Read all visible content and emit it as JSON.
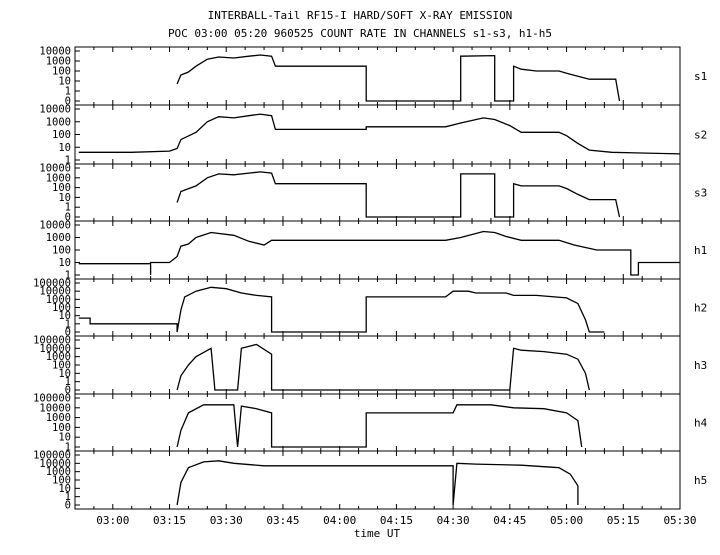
{
  "title_line1": "INTERBALL-Tail RF15-I HARD/SOFT X-RAY EMISSION",
  "title_line2": "POC 03:00 05:20 960525  COUNT RATE IN CHANNELS s1-s3, h1-h5",
  "chart_data": {
    "type": "line",
    "xlabel": "time UT",
    "x_unit": "UT (hh:mm)",
    "xlim": [
      "02:50",
      "05:30"
    ],
    "x_ticks": [
      "03:00",
      "03:15",
      "03:30",
      "03:45",
      "04:00",
      "04:15",
      "04:30",
      "04:45",
      "05:00",
      "05:15",
      "05:30"
    ],
    "y_scale": "log",
    "series": [
      {
        "name": "s1",
        "ylim": [
          0.1,
          10000
        ],
        "y_ticks": [
          "10000",
          "1000",
          "100",
          "10",
          "1",
          "0"
        ],
        "points": [
          [
            "03:17",
            5
          ],
          [
            "03:18",
            40
          ],
          [
            "03:20",
            80
          ],
          [
            "03:22",
            300
          ],
          [
            "03:25",
            1500
          ],
          [
            "03:28",
            2500
          ],
          [
            "03:32",
            2000
          ],
          [
            "03:36",
            3000
          ],
          [
            "03:39",
            4000
          ],
          [
            "03:42",
            3000
          ],
          [
            "03:43",
            300
          ],
          [
            "04:07",
            300
          ],
          [
            "04:07",
            0.1
          ],
          [
            "04:32",
            0.1
          ],
          [
            "04:32",
            3000
          ],
          [
            "04:41",
            3500
          ],
          [
            "04:41",
            0.1
          ],
          [
            "04:46",
            0.1
          ],
          [
            "04:46",
            300
          ],
          [
            "04:48",
            150
          ],
          [
            "04:52",
            100
          ],
          [
            "04:58",
            100
          ],
          [
            "05:00",
            60
          ],
          [
            "05:03",
            30
          ],
          [
            "05:06",
            15
          ],
          [
            "05:13",
            15
          ],
          [
            "05:14",
            0.1
          ]
        ]
      },
      {
        "name": "s2",
        "ylim": [
          1,
          10000
        ],
        "y_ticks": [
          "10000",
          "1000",
          "100",
          "10",
          "1"
        ],
        "points": [
          [
            "02:51",
            4
          ],
          [
            "03:05",
            4
          ],
          [
            "03:15",
            5
          ],
          [
            "03:17",
            8
          ],
          [
            "03:18",
            40
          ],
          [
            "03:22",
            150
          ],
          [
            "03:25",
            1000
          ],
          [
            "03:28",
            2500
          ],
          [
            "03:32",
            2000
          ],
          [
            "03:36",
            3000
          ],
          [
            "03:39",
            4000
          ],
          [
            "03:42",
            3000
          ],
          [
            "03:43",
            250
          ],
          [
            "04:07",
            250
          ],
          [
            "04:07",
            400
          ],
          [
            "04:28",
            400
          ],
          [
            "04:32",
            800
          ],
          [
            "04:38",
            2000
          ],
          [
            "04:41",
            1500
          ],
          [
            "04:45",
            500
          ],
          [
            "04:48",
            150
          ],
          [
            "04:54",
            150
          ],
          [
            "04:58",
            150
          ],
          [
            "05:00",
            80
          ],
          [
            "05:03",
            20
          ],
          [
            "05:06",
            6
          ],
          [
            "05:12",
            4
          ],
          [
            "05:30",
            3
          ]
        ]
      },
      {
        "name": "s3",
        "ylim": [
          0.1,
          10000
        ],
        "y_ticks": [
          "10000",
          "1000",
          "100",
          "10",
          "1",
          "0"
        ],
        "points": [
          [
            "03:17",
            3
          ],
          [
            "03:18",
            40
          ],
          [
            "03:22",
            150
          ],
          [
            "03:25",
            1000
          ],
          [
            "03:28",
            2500
          ],
          [
            "03:32",
            2000
          ],
          [
            "03:36",
            3000
          ],
          [
            "03:39",
            4000
          ],
          [
            "03:42",
            3000
          ],
          [
            "03:43",
            250
          ],
          [
            "04:07",
            250
          ],
          [
            "04:07",
            0.1
          ],
          [
            "04:32",
            0.1
          ],
          [
            "04:32",
            2500
          ],
          [
            "04:41",
            2500
          ],
          [
            "04:41",
            0.1
          ],
          [
            "04:46",
            0.1
          ],
          [
            "04:46",
            250
          ],
          [
            "04:48",
            150
          ],
          [
            "04:54",
            150
          ],
          [
            "04:58",
            150
          ],
          [
            "05:00",
            80
          ],
          [
            "05:03",
            20
          ],
          [
            "05:06",
            6
          ],
          [
            "05:13",
            6
          ],
          [
            "05:14",
            0.1
          ]
        ]
      },
      {
        "name": "h1",
        "ylim": [
          1,
          10000
        ],
        "y_ticks": [
          "10000",
          "1000",
          "100",
          "10",
          "1"
        ],
        "points": [
          [
            "02:51",
            8
          ],
          [
            "03:10",
            8
          ],
          [
            "03:10",
            1
          ],
          [
            "03:10",
            10
          ],
          [
            "03:15",
            10
          ],
          [
            "03:17",
            30
          ],
          [
            "03:18",
            200
          ],
          [
            "03:20",
            300
          ],
          [
            "03:22",
            1000
          ],
          [
            "03:26",
            2500
          ],
          [
            "03:32",
            1500
          ],
          [
            "03:36",
            500
          ],
          [
            "03:40",
            250
          ],
          [
            "03:42",
            600
          ],
          [
            "04:28",
            600
          ],
          [
            "04:32",
            1000
          ],
          [
            "04:38",
            3000
          ],
          [
            "04:41",
            2500
          ],
          [
            "04:44",
            1200
          ],
          [
            "04:48",
            600
          ],
          [
            "04:58",
            600
          ],
          [
            "05:02",
            250
          ],
          [
            "05:08",
            100
          ],
          [
            "05:13",
            100
          ],
          [
            "05:17",
            100
          ],
          [
            "05:17",
            1
          ],
          [
            "05:19",
            1
          ],
          [
            "05:19",
            10
          ],
          [
            "05:30",
            10
          ]
        ]
      },
      {
        "name": "h2",
        "ylim": [
          0.1,
          100000
        ],
        "y_ticks": [
          "100000",
          "10000",
          "1000",
          "100",
          "10",
          "1",
          "0"
        ],
        "points": [
          [
            "02:51",
            5
          ],
          [
            "02:54",
            5
          ],
          [
            "02:54",
            1
          ],
          [
            "03:17",
            1
          ],
          [
            "03:17",
            0.1
          ],
          [
            "03:18",
            50
          ],
          [
            "03:19",
            2000
          ],
          [
            "03:22",
            10000
          ],
          [
            "03:26",
            30000
          ],
          [
            "03:30",
            20000
          ],
          [
            "03:34",
            6000
          ],
          [
            "03:38",
            3000
          ],
          [
            "03:42",
            2000
          ],
          [
            "03:42",
            0.1
          ],
          [
            "04:07",
            0.1
          ],
          [
            "04:07",
            2000
          ],
          [
            "04:28",
            2000
          ],
          [
            "04:30",
            10000
          ],
          [
            "04:34",
            10000
          ],
          [
            "04:36",
            6000
          ],
          [
            "04:44",
            6000
          ],
          [
            "04:46",
            3000
          ],
          [
            "04:52",
            3000
          ],
          [
            "05:00",
            1500
          ],
          [
            "05:03",
            300
          ],
          [
            "05:05",
            3
          ],
          [
            "05:06",
            0.1
          ],
          [
            "05:10",
            0.1
          ]
        ]
      },
      {
        "name": "h3",
        "ylim": [
          0.1,
          100000
        ],
        "y_ticks": [
          "100000",
          "10000",
          "1000",
          "100",
          "10",
          "1",
          "0"
        ],
        "points": [
          [
            "03:17",
            0.1
          ],
          [
            "03:18",
            5
          ],
          [
            "03:20",
            100
          ],
          [
            "03:22",
            1000
          ],
          [
            "03:26",
            10000
          ],
          [
            "03:27",
            0.1
          ],
          [
            "03:33",
            0.1
          ],
          [
            "03:34",
            10000
          ],
          [
            "03:38",
            30000
          ],
          [
            "03:42",
            2000
          ],
          [
            "03:42",
            0.1
          ],
          [
            "04:45",
            0.1
          ],
          [
            "04:46",
            10000
          ],
          [
            "04:48",
            6000
          ],
          [
            "04:54",
            4000
          ],
          [
            "05:00",
            2000
          ],
          [
            "05:03",
            500
          ],
          [
            "05:05",
            10
          ],
          [
            "05:06",
            0.1
          ]
        ]
      },
      {
        "name": "h4",
        "ylim": [
          1,
          100000
        ],
        "y_ticks": [
          "100000",
          "10000",
          "1000",
          "100",
          "10",
          "1"
        ],
        "points": [
          [
            "03:17",
            1
          ],
          [
            "03:18",
            50
          ],
          [
            "03:20",
            3000
          ],
          [
            "03:24",
            20000
          ],
          [
            "03:32",
            20000
          ],
          [
            "03:33",
            1
          ],
          [
            "03:34",
            15000
          ],
          [
            "03:38",
            8000
          ],
          [
            "03:42",
            3000
          ],
          [
            "03:42",
            1
          ],
          [
            "04:07",
            1
          ],
          [
            "04:07",
            3000
          ],
          [
            "04:30",
            3000
          ],
          [
            "04:31",
            20000
          ],
          [
            "04:40",
            20000
          ],
          [
            "04:46",
            10000
          ],
          [
            "04:54",
            8000
          ],
          [
            "05:00",
            3000
          ],
          [
            "05:03",
            500
          ],
          [
            "05:04",
            1
          ]
        ]
      },
      {
        "name": "h5",
        "ylim": [
          0.1,
          100000
        ],
        "y_ticks": [
          "100000",
          "10000",
          "1000",
          "100",
          "10",
          "1",
          "0"
        ],
        "points": [
          [
            "03:17",
            0.1
          ],
          [
            "03:18",
            50
          ],
          [
            "03:20",
            3000
          ],
          [
            "03:24",
            15000
          ],
          [
            "03:28",
            20000
          ],
          [
            "03:32",
            10000
          ],
          [
            "03:40",
            5000
          ],
          [
            "04:30",
            5000
          ],
          [
            "04:30",
            0.1
          ],
          [
            "04:31",
            10000
          ],
          [
            "04:36",
            8000
          ],
          [
            "04:48",
            6000
          ],
          [
            "04:58",
            3000
          ],
          [
            "05:01",
            500
          ],
          [
            "05:03",
            20
          ],
          [
            "05:03",
            0.1
          ]
        ]
      }
    ]
  }
}
